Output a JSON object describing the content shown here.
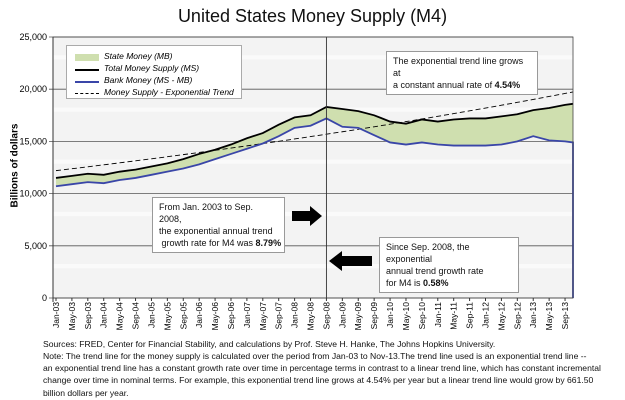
{
  "chart_data": {
    "type": "line",
    "title": "United States Money Supply (M4)",
    "ylabel": "Billions of dollars",
    "ylim": [
      0,
      25000
    ],
    "yticks": [
      "0",
      "5,000",
      "10,000",
      "15,000",
      "20,000",
      "25,000"
    ],
    "ytick_values": [
      0,
      5000,
      10000,
      15000,
      20000,
      25000
    ],
    "grid": true,
    "legend_position": "top-left",
    "x": [
      "Jan-03",
      "May-03",
      "Sep-03",
      "Jan-04",
      "May-04",
      "Sep-04",
      "Jan-05",
      "May-05",
      "Sep-05",
      "Jan-06",
      "May-06",
      "Sep-06",
      "Jan-07",
      "May-07",
      "Sep-07",
      "Jan-08",
      "May-08",
      "Sep-08",
      "Jan-09",
      "May-09",
      "Sep-09",
      "Jan-10",
      "May-10",
      "Sep-10",
      "Jan-11",
      "May-11",
      "Sep-11",
      "Jan-12",
      "May-12",
      "Sep-12",
      "Jan-13",
      "May-13",
      "Sep-13",
      "Nov-13"
    ],
    "xtick_labels": [
      "Jan-03",
      "May-03",
      "Sep-03",
      "Jan-04",
      "May-04",
      "Sep-04",
      "Jan-05",
      "May-05",
      "Sep-05",
      "Jan-06",
      "May-06",
      "Sep-06",
      "Jan-07",
      "May-07",
      "Sep-07",
      "Jan-08",
      "May-08",
      "Sep-08",
      "Jan-09",
      "May-09",
      "Sep-09",
      "Jan-10",
      "May-10",
      "Sep-10",
      "Jan-11",
      "May-11",
      "Sep-11",
      "Jan-12",
      "May-12",
      "Sep-12",
      "Jan-13",
      "May-13",
      "Sep-13"
    ],
    "series": [
      {
        "name": "State Money (MB)",
        "kind": "area-between",
        "color": "#cfdfaf"
      },
      {
        "name": "Total Money Supply (MS)",
        "color": "#000000",
        "values": [
          11500,
          11700,
          11900,
          11800,
          12100,
          12300,
          12600,
          12900,
          13300,
          13800,
          14200,
          14700,
          15300,
          15800,
          16600,
          17300,
          17500,
          18300,
          18100,
          17900,
          17500,
          16900,
          16700,
          17100,
          16900,
          17100,
          17200,
          17200,
          17400,
          17600,
          18000,
          18200,
          18500,
          18600
        ]
      },
      {
        "name": "Bank Money (MS - MB)",
        "color": "#3a46a8",
        "values": [
          10700,
          10900,
          11100,
          11000,
          11300,
          11500,
          11800,
          12100,
          12400,
          12800,
          13300,
          13800,
          14300,
          14800,
          15500,
          16300,
          16500,
          17200,
          16400,
          16300,
          15600,
          14900,
          14700,
          14900,
          14700,
          14600,
          14600,
          14600,
          14700,
          15000,
          15500,
          15100,
          15000,
          14900
        ]
      },
      {
        "name": "Money Supply - Exponential Trend",
        "color": "#000000",
        "dash": true,
        "start_value": 12200,
        "annual_growth_rate_pct": 4.54
      }
    ],
    "vline_at": "Sep-08",
    "annotations": {
      "trend": [
        "The exponential trend line grows at",
        "a constant annual rate of ",
        "4.54%"
      ],
      "pre": [
        "From Jan. 2003 to Sep. 2008,",
        "the exponential annual trend",
        " growth rate for M4 was ",
        "8.79%"
      ],
      "post": [
        "Since Sep. 2008, the exponential",
        "annual trend growth rate",
        "for M4 is ",
        "0.58%"
      ]
    }
  },
  "notes": {
    "sources": "Sources: FRED, Center for Financial Stability, and calculations by Prof. Steve H. Hanke, The Johns Hopkins University.",
    "note1": "Note: The trend line for the money supply is calculated over the period from Jan-03 to Nov-13.The trend line used is an exponential trend line --",
    "note2": "an exponential trend line has a constant growth rate over time in percentage terms in contrast to a linear trend line, which has constant incremental",
    "note3": "change over time in nominal terms. For example, this exponential trend line grows at 4.54% per year but a linear trend line would grow by 661.50",
    "note4": "billion dollars per year."
  }
}
